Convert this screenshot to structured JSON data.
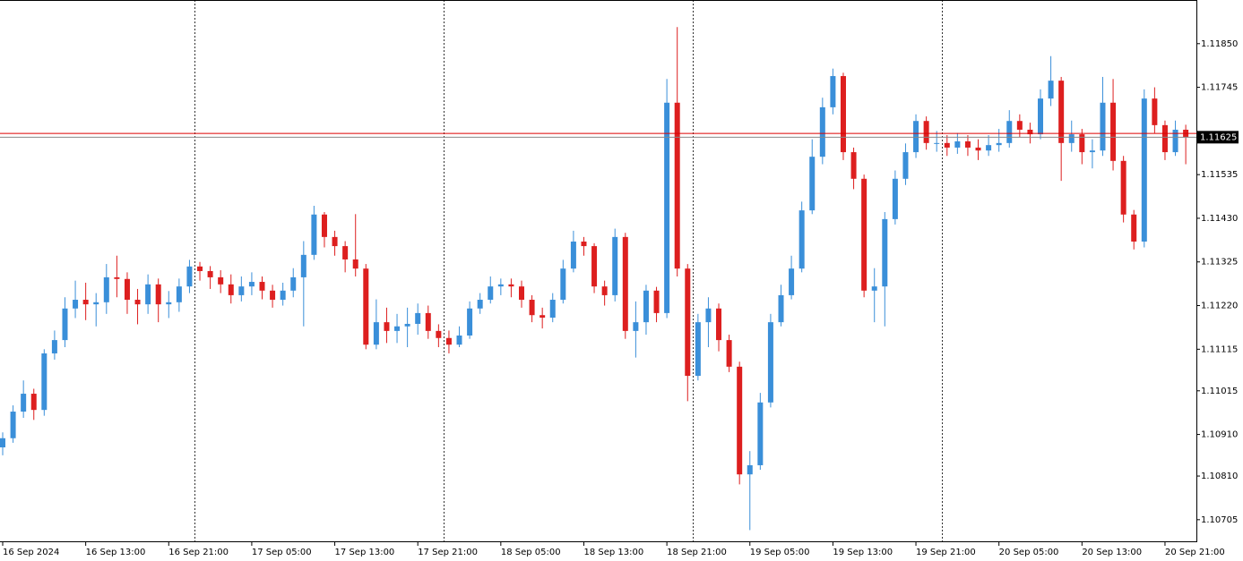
{
  "chart_data": {
    "type": "candlestick",
    "categories": [
      "16 Sep 2024",
      null,
      null,
      null,
      null,
      null,
      null,
      null,
      "16 Sep 13:00",
      null,
      null,
      null,
      null,
      null,
      null,
      null,
      "16 Sep 21:00",
      null,
      null,
      null,
      null,
      null,
      null,
      null,
      "17 Sep 05:00",
      null,
      null,
      null,
      null,
      null,
      null,
      null,
      "17 Sep 13:00",
      null,
      null,
      null,
      null,
      null,
      null,
      null,
      "17 Sep 21:00",
      null,
      null,
      null,
      null,
      null,
      null,
      null,
      "18 Sep 05:00",
      null,
      null,
      null,
      null,
      null,
      null,
      null,
      "18 Sep 13:00",
      null,
      null,
      null,
      null,
      null,
      null,
      null,
      "18 Sep 21:00",
      null,
      null,
      null,
      null,
      null,
      null,
      null,
      "19 Sep 05:00",
      null,
      null,
      null,
      null,
      null,
      null,
      null,
      "19 Sep 13:00",
      null,
      null,
      null,
      null,
      null,
      null,
      null,
      "19 Sep 21:00",
      null,
      null,
      null,
      null,
      null,
      null,
      null,
      "20 Sep 05:00",
      null,
      null,
      null,
      null,
      null,
      null,
      null,
      "20 Sep 13:00",
      null,
      null,
      null,
      null,
      null,
      null,
      null,
      "20 Sep 21:00",
      null,
      null
    ],
    "open": [
      1.10879,
      1.10901,
      1.10965,
      1.11008,
      1.10969,
      1.11105,
      1.11137,
      1.11213,
      1.11234,
      1.11223,
      1.11228,
      1.11288,
      1.11284,
      1.11234,
      1.11223,
      1.11271,
      1.11223,
      1.11228,
      1.11266,
      1.11314,
      1.11303,
      1.11288,
      1.11271,
      1.11245,
      1.11266,
      1.11277,
      1.11256,
      1.11234,
      1.11256,
      1.11288,
      1.11342,
      1.11439,
      1.11385,
      1.11363,
      1.11331,
      1.11309,
      1.11126,
      1.1118,
      1.11159,
      1.1117,
      1.11176,
      1.11202,
      1.11159,
      1.11142,
      1.11126,
      1.11148,
      1.11213,
      1.11234,
      1.11266,
      1.11271,
      1.11266,
      1.11234,
      1.11197,
      1.11191,
      1.11234,
      1.11309,
      1.11374,
      1.11363,
      1.11266,
      1.11245,
      1.11385,
      1.11159,
      1.1118,
      1.11256,
      1.11202,
      1.11708,
      1.11309,
      1.11051,
      1.1118,
      1.11213,
      1.11137,
      1.11073,
      1.10814,
      1.10836,
      1.10987,
      1.1118,
      1.11245,
      1.11309,
      1.11449,
      1.11578,
      1.11697,
      1.11772,
      1.11589,
      1.11525,
      1.11256,
      1.11266,
      1.11428,
      1.11525,
      1.11589,
      1.11664,
      1.11611,
      1.11611,
      1.116,
      1.11615,
      1.116,
      1.11593,
      1.11606,
      1.11611,
      1.11664,
      1.11643,
      1.11632,
      1.11718,
      1.11761,
      1.11611,
      1.11632,
      1.11589,
      1.11593,
      1.11708,
      1.11568,
      1.11439,
      1.11374,
      1.11718,
      1.11654,
      1.11589,
      1.11643
    ],
    "high": [
      1.10915,
      1.1098,
      1.1104,
      1.1102,
      1.11115,
      1.1116,
      1.1124,
      1.1128,
      1.11275,
      1.1125,
      1.1132,
      1.1134,
      1.113,
      1.1126,
      1.11295,
      1.11285,
      1.11255,
      1.11285,
      1.1133,
      1.11325,
      1.11315,
      1.11305,
      1.11295,
      1.1129,
      1.113,
      1.1129,
      1.1127,
      1.11275,
      1.1131,
      1.11375,
      1.1146,
      1.11445,
      1.114,
      1.11375,
      1.1144,
      1.1132,
      1.11235,
      1.11215,
      1.112,
      1.11215,
      1.11225,
      1.1122,
      1.11175,
      1.1116,
      1.1117,
      1.1123,
      1.1125,
      1.1129,
      1.11285,
      1.11285,
      1.1128,
      1.11245,
      1.11215,
      1.1125,
      1.1133,
      1.114,
      1.11385,
      1.1137,
      1.1128,
      1.11405,
      1.11395,
      1.1123,
      1.1127,
      1.11265,
      1.11765,
      1.1189,
      1.1132,
      1.112,
      1.1124,
      1.11225,
      1.1115,
      1.11085,
      1.1087,
      1.1101,
      1.112,
      1.1127,
      1.1134,
      1.1147,
      1.1162,
      1.1172,
      1.1179,
      1.1178,
      1.116,
      1.11535,
      1.1131,
      1.11445,
      1.11545,
      1.1161,
      1.1168,
      1.11675,
      1.1164,
      1.1163,
      1.11635,
      1.1163,
      1.1162,
      1.1163,
      1.11645,
      1.1169,
      1.1168,
      1.1166,
      1.1174,
      1.1182,
      1.1177,
      1.11665,
      1.11645,
      1.1162,
      1.1177,
      1.11765,
      1.1158,
      1.1145,
      1.1174,
      1.11745,
      1.11665,
      1.11665,
      1.11655
    ],
    "low": [
      1.1086,
      1.1089,
      1.1095,
      1.10945,
      1.10955,
      1.1109,
      1.1112,
      1.1119,
      1.11185,
      1.1117,
      1.112,
      1.1124,
      1.112,
      1.11175,
      1.112,
      1.1118,
      1.1119,
      1.11205,
      1.1125,
      1.1128,
      1.1126,
      1.1125,
      1.11225,
      1.1123,
      1.11245,
      1.11235,
      1.11215,
      1.1122,
      1.1124,
      1.1117,
      1.1133,
      1.1136,
      1.1134,
      1.113,
      1.1129,
      1.11115,
      1.11115,
      1.1113,
      1.1113,
      1.1112,
      1.1115,
      1.1114,
      1.1112,
      1.11105,
      1.1112,
      1.1114,
      1.112,
      1.11225,
      1.11245,
      1.1124,
      1.11215,
      1.1118,
      1.11165,
      1.1118,
      1.11225,
      1.113,
      1.1134,
      1.1125,
      1.1122,
      1.1123,
      1.1114,
      1.11095,
      1.1115,
      1.1118,
      1.1119,
      1.1129,
      1.1099,
      1.1104,
      1.1112,
      1.1111,
      1.1106,
      1.1079,
      1.1068,
      1.10825,
      1.10975,
      1.1117,
      1.11235,
      1.113,
      1.1144,
      1.1156,
      1.1168,
      1.1157,
      1.115,
      1.1124,
      1.1118,
      1.1117,
      1.11415,
      1.1151,
      1.11575,
      1.11595,
      1.1159,
      1.1158,
      1.11585,
      1.1158,
      1.1157,
      1.1158,
      1.1159,
      1.116,
      1.11625,
      1.1161,
      1.1162,
      1.117,
      1.1152,
      1.1159,
      1.1156,
      1.1155,
      1.1158,
      1.11545,
      1.1142,
      1.11355,
      1.1136,
      1.11635,
      1.1157,
      1.1158,
      1.1156
    ],
    "close": [
      1.10901,
      1.10965,
      1.11008,
      1.10969,
      1.11105,
      1.11137,
      1.11213,
      1.11234,
      1.11223,
      1.11228,
      1.11288,
      1.11284,
      1.11234,
      1.11223,
      1.11271,
      1.11223,
      1.11228,
      1.11266,
      1.11314,
      1.11303,
      1.11288,
      1.11271,
      1.11245,
      1.11266,
      1.11277,
      1.11256,
      1.11234,
      1.11256,
      1.11288,
      1.11342,
      1.11439,
      1.11385,
      1.11363,
      1.11331,
      1.11309,
      1.11126,
      1.1118,
      1.11159,
      1.1117,
      1.11176,
      1.11202,
      1.11159,
      1.11142,
      1.11126,
      1.11148,
      1.11213,
      1.11234,
      1.11266,
      1.11271,
      1.11266,
      1.11234,
      1.11197,
      1.11191,
      1.11234,
      1.11309,
      1.11374,
      1.11363,
      1.11266,
      1.11245,
      1.11385,
      1.11159,
      1.1118,
      1.11256,
      1.11202,
      1.11708,
      1.11309,
      1.11051,
      1.1118,
      1.11213,
      1.11137,
      1.11073,
      1.10814,
      1.10836,
      1.10987,
      1.1118,
      1.11245,
      1.11309,
      1.11449,
      1.11578,
      1.11697,
      1.11772,
      1.11589,
      1.11525,
      1.11256,
      1.11266,
      1.11428,
      1.11525,
      1.11589,
      1.11664,
      1.11611,
      1.11611,
      1.116,
      1.11615,
      1.116,
      1.11593,
      1.11606,
      1.11611,
      1.11664,
      1.11643,
      1.11632,
      1.11718,
      1.11761,
      1.11611,
      1.11632,
      1.11589,
      1.11593,
      1.11708,
      1.11568,
      1.11439,
      1.11374,
      1.11718,
      1.11654,
      1.11589,
      1.11643,
      1.11625
    ],
    "up_color": "#3a8fd9",
    "down_color": "#dd1f1f",
    "ylim": [
      1.10653,
      1.11955
    ],
    "yticks": [
      {
        "value": 1.1185,
        "label": "1.11850"
      },
      {
        "value": 1.11745,
        "label": "1.11745"
      },
      {
        "value": 1.11535,
        "label": "1.11535"
      },
      {
        "value": 1.1143,
        "label": "1.11430"
      },
      {
        "value": 1.11325,
        "label": "1.11325"
      },
      {
        "value": 1.1122,
        "label": "1.11220"
      },
      {
        "value": 1.11115,
        "label": "1.11115"
      },
      {
        "value": 1.11015,
        "label": "1.11015"
      },
      {
        "value": 1.1091,
        "label": "1.10910"
      },
      {
        "value": 1.1081,
        "label": "1.10810"
      },
      {
        "value": 1.10705,
        "label": "1.10705"
      }
    ],
    "last_price": {
      "value": 1.11625,
      "label": "1.11625"
    },
    "ask_price": 1.11634,
    "period_separators": [
      19,
      43,
      67,
      91
    ]
  }
}
